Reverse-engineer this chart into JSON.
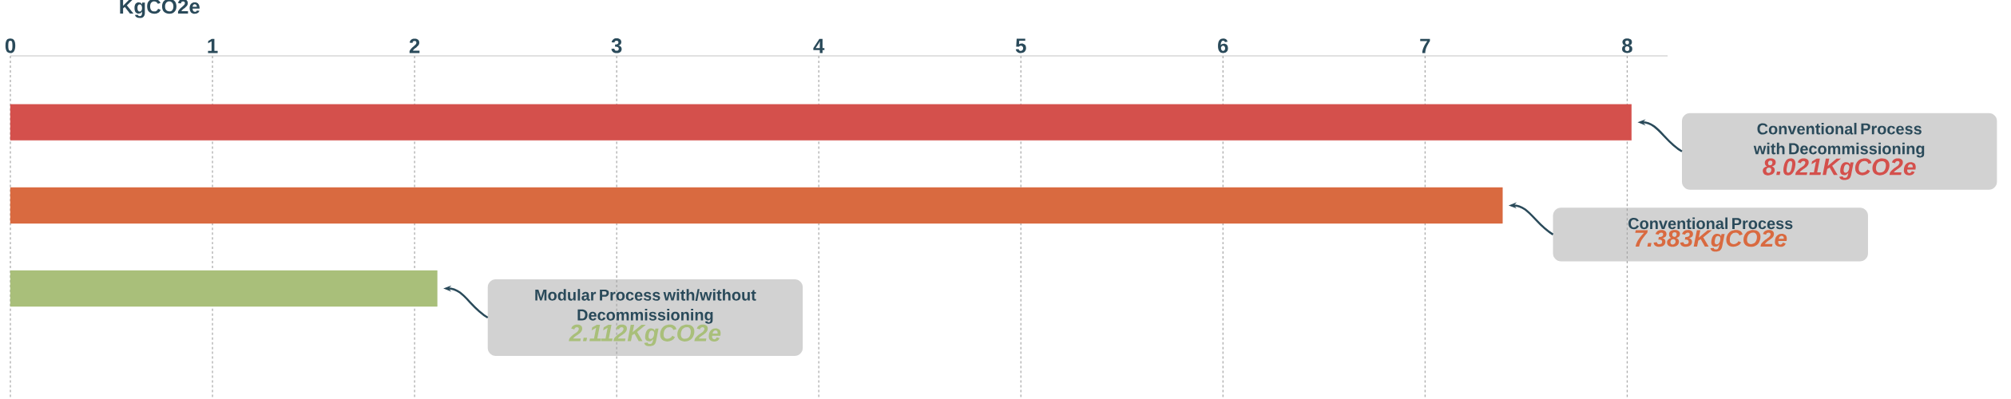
{
  "chart_data": {
    "type": "bar",
    "orientation": "horizontal",
    "xlabel": "KgCO2e",
    "categories": [
      null,
      null,
      null
    ],
    "values": [
      8.021,
      7.383,
      2.112
    ],
    "colors": [
      "#d4504c",
      "#d96a40",
      "#a9bf7a"
    ],
    "annotations": [
      "Conventional Process with Decommissioning",
      "8.021KgCO2e",
      "Conventional Process",
      "7.383KgCO2e",
      "Modular Process with/without Decommissioning",
      "2.112KgCO2e"
    ],
    "xlim": [
      0,
      8.2
    ],
    "xticks": [
      0,
      1,
      2,
      3,
      4,
      5,
      6,
      7,
      8
    ],
    "grid": "x"
  }
}
